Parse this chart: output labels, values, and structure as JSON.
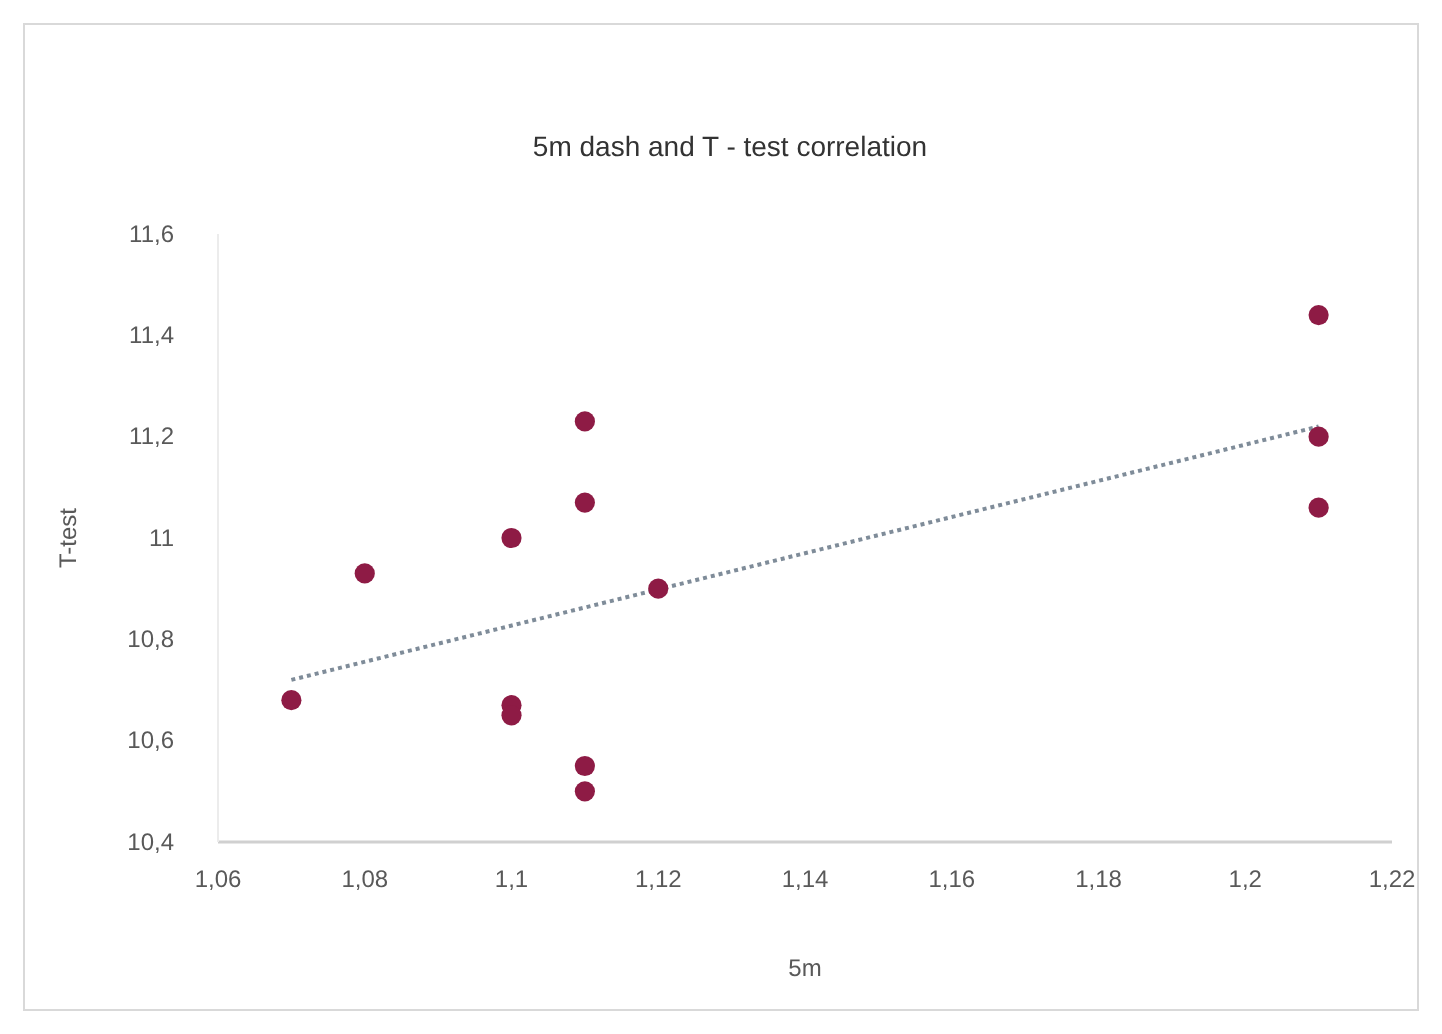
{
  "chart_data": {
    "type": "scatter",
    "title": "5m dash and T - test correlation",
    "xlabel": "5m",
    "ylabel": "T-test",
    "xlim": [
      1.06,
      1.22
    ],
    "xticks": [
      {
        "value": 1.06,
        "label": "1,06"
      },
      {
        "value": 1.08,
        "label": "1,08"
      },
      {
        "value": 1.1,
        "label": "1,1"
      },
      {
        "value": 1.12,
        "label": "1,12"
      },
      {
        "value": 1.14,
        "label": "1,14"
      },
      {
        "value": 1.16,
        "label": "1,16"
      },
      {
        "value": 1.18,
        "label": "1,18"
      },
      {
        "value": 1.2,
        "label": "1,2"
      },
      {
        "value": 1.22,
        "label": "1,22"
      }
    ],
    "ylim": [
      10.4,
      11.6
    ],
    "yticks": [
      {
        "value": 10.4,
        "label": "10,4"
      },
      {
        "value": 10.6,
        "label": "10,6"
      },
      {
        "value": 10.8,
        "label": "10,8"
      },
      {
        "value": 11,
        "label": "11"
      },
      {
        "value": 11.2,
        "label": "11,2"
      },
      {
        "value": 11.4,
        "label": "11,4"
      },
      {
        "value": 11.6,
        "label": "11,6"
      }
    ],
    "marker": "circle",
    "grid": false,
    "series": [
      {
        "color": "#8e1b45",
        "x": [
          1.07,
          1.08,
          1.1,
          1.1,
          1.1,
          1.11,
          1.11,
          1.11,
          1.11,
          1.12,
          1.21,
          1.21,
          1.21
        ],
        "values": [
          10.68,
          10.93,
          11.0,
          10.67,
          10.65,
          11.23,
          11.07,
          10.55,
          10.5,
          10.9,
          11.44,
          11.2,
          11.06
        ]
      },
      {
        "type": "line",
        "color": "#7f8c99",
        "line_style": "dotted",
        "marker": "none",
        "x": [
          1.07,
          1.21
        ],
        "values": [
          10.72,
          11.22
        ]
      }
    ]
  }
}
